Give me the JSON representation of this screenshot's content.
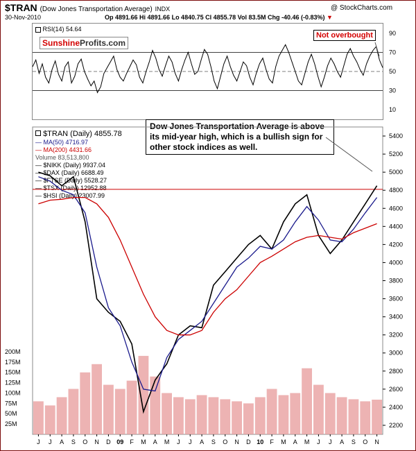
{
  "header": {
    "symbol": "$TRAN",
    "name": "(Dow Jones Transportation Average)",
    "exchange": "INDX",
    "watermark": "@ StockCharts.com",
    "date": "30-Nov-2010",
    "ohlc": "Op 4891.66  Hi 4891.66  Lo 4840.75  Cl 4855.78  Vol 83.5M  Chg -40.46 (-0.83%)",
    "chg_arrow": "▼"
  },
  "brand": {
    "part1": "Sunshine",
    "part2": "Profits.com"
  },
  "rsi": {
    "label": "RSI(14) 54.64",
    "ticks": [
      "90",
      "70",
      "50",
      "30",
      "10"
    ],
    "annotation": "Not overbought",
    "values": [
      55,
      62,
      48,
      58,
      44,
      38,
      52,
      61,
      47,
      40,
      55,
      60,
      38,
      45,
      58,
      63,
      50,
      42,
      35,
      40,
      28,
      34,
      48,
      54,
      60,
      66,
      52,
      44,
      40,
      48,
      55,
      62,
      57,
      44,
      38,
      50,
      60,
      72,
      64,
      52,
      45,
      56,
      66,
      60,
      48,
      40,
      52,
      62,
      70,
      58,
      47,
      50,
      62,
      73,
      68,
      55,
      40,
      32,
      45,
      58,
      66,
      55,
      46,
      40,
      50,
      60,
      56,
      44,
      36,
      48,
      58,
      64,
      52,
      42,
      38,
      55,
      66,
      72,
      78,
      70,
      60,
      50,
      40,
      36,
      48,
      60,
      68,
      58,
      45,
      34,
      44,
      56,
      64,
      58,
      50,
      44,
      56,
      68,
      74,
      66,
      60,
      52,
      46,
      58,
      66,
      72,
      76,
      62,
      54
    ]
  },
  "price_legend": {
    "tran": "$TRAN (Daily) 4855.78",
    "ma50": "MA(50) 4716.97",
    "ma200": "MA(200) 4431.66",
    "volume": "Volume 83,513,800",
    "nikk": "$NIKK (Daily) 9937.04",
    "dax": "$DAX (Daily) 6688.49",
    "ftse": "$FTSE (Daily) 5528.27",
    "tsx": "$TSX (Daily) 12952.88",
    "hsi": "$HSI (Daily) 23007.99"
  },
  "callout": "Dow Jones Transportation Average is above its mid-year high, which is a bullish sign for other stock indices as well.",
  "colors": {
    "price": "#000000",
    "up": "#000000",
    "down": "#cc0000",
    "ma50": "#1a1a8c",
    "ma200": "#cc0000",
    "resistance": "#cc0000",
    "overlay": "#c8c8c8",
    "volume": "#e8a0a0",
    "brand": "#d40000"
  },
  "chart_data": {
    "type": "line",
    "title": "$TRAN (Dow Jones Transportation Average) INDX",
    "xlabel": "",
    "ylabel": "",
    "x": [
      "J",
      "J",
      "A",
      "S",
      "O",
      "N",
      "D",
      "09",
      "F",
      "M",
      "A",
      "M",
      "J",
      "J",
      "A",
      "S",
      "O",
      "N",
      "D",
      "10",
      "F",
      "M",
      "A",
      "M",
      "J",
      "J",
      "A",
      "S",
      "O",
      "N"
    ],
    "ylim": [
      2100,
      5500
    ],
    "y_ticks": [
      5400,
      5200,
      5000,
      4800,
      4600,
      4400,
      4200,
      4000,
      3800,
      3600,
      3400,
      3200,
      3000,
      2800,
      2600,
      2400,
      2200
    ],
    "volume_ticks": [
      "200M",
      "175M",
      "150M",
      "125M",
      "100M",
      "75M",
      "50M",
      "25M"
    ],
    "volume_max": 210,
    "resistance_level": 4810,
    "series": [
      {
        "name": "$TRAN (Daily)",
        "values": [
          5000,
          4960,
          4850,
          4950,
          4450,
          3600,
          3450,
          3350,
          3100,
          2350,
          2700,
          2880,
          3200,
          3300,
          3280,
          3750,
          3900,
          4050,
          4200,
          4300,
          4150,
          4450,
          4650,
          4750,
          4300,
          4100,
          4250,
          4450,
          4650,
          4850
        ]
      },
      {
        "name": "MA(50)",
        "values": [
          4950,
          4900,
          4800,
          4750,
          4550,
          3950,
          3500,
          3300,
          2900,
          2600,
          2580,
          2950,
          3150,
          3250,
          3350,
          3550,
          3750,
          3950,
          4050,
          4180,
          4150,
          4250,
          4450,
          4620,
          4470,
          4250,
          4230,
          4370,
          4550,
          4720
        ]
      },
      {
        "name": "MA(200)",
        "values": [
          4650,
          4690,
          4700,
          4720,
          4720,
          4650,
          4500,
          4250,
          3950,
          3650,
          3400,
          3250,
          3200,
          3200,
          3250,
          3450,
          3600,
          3700,
          3850,
          4000,
          4070,
          4150,
          4230,
          4280,
          4300,
          4280,
          4260,
          4330,
          4380,
          4430
        ]
      },
      {
        "name": "Volume (M)",
        "values": [
          80,
          70,
          90,
          110,
          150,
          170,
          120,
          110,
          130,
          190,
          140,
          100,
          90,
          85,
          95,
          90,
          85,
          80,
          75,
          90,
          110,
          95,
          100,
          160,
          120,
          100,
          90,
          85,
          80,
          84
        ]
      }
    ]
  }
}
